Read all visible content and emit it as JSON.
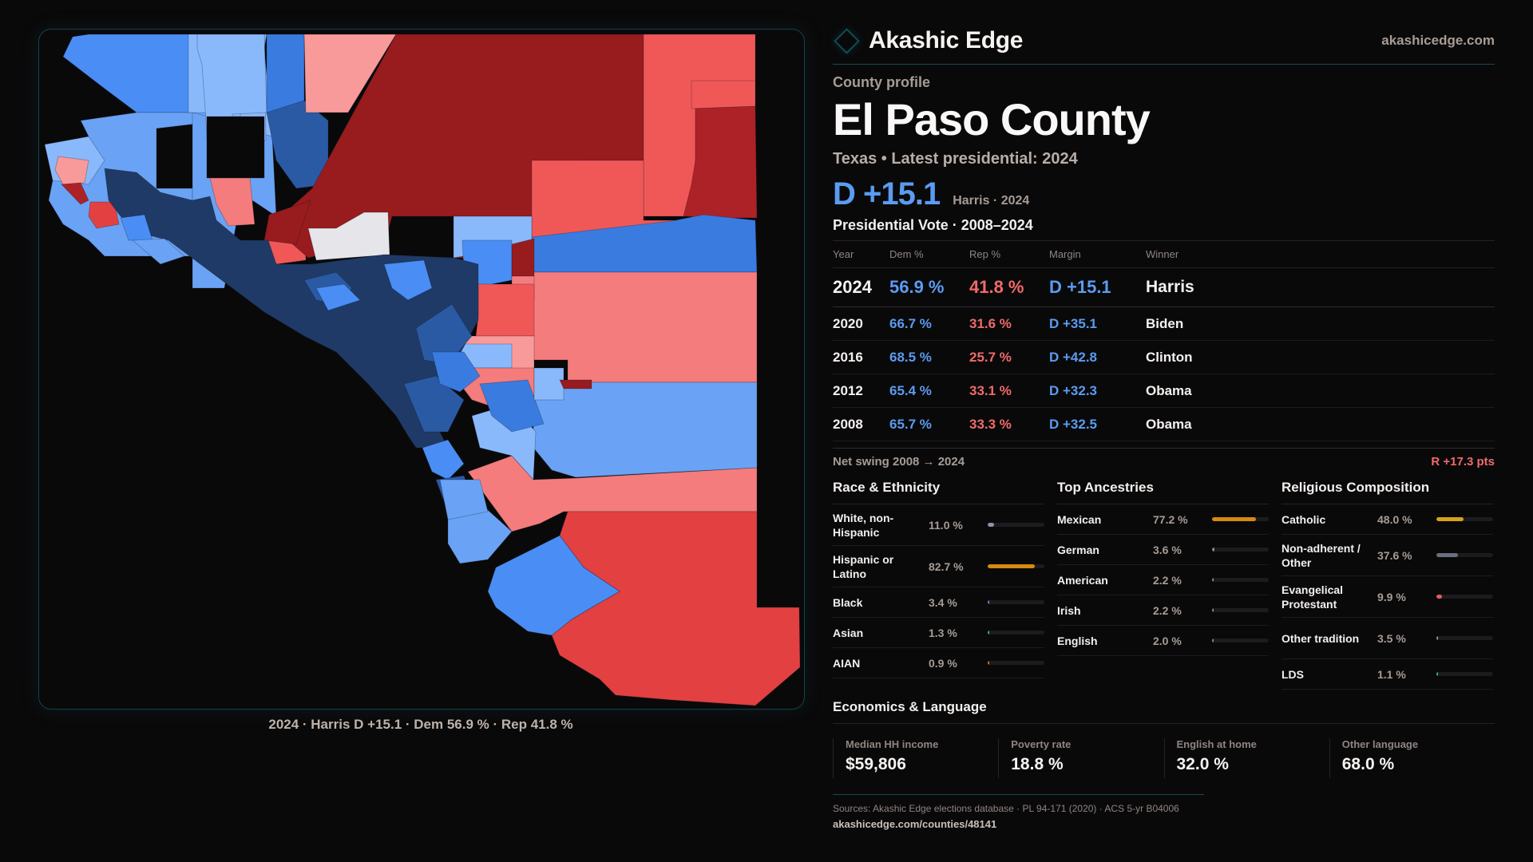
{
  "brand": {
    "name": "Akashic Edge",
    "url": "akashicedge.com",
    "logo_icon": "diamond-outline-icon"
  },
  "profile": {
    "eyebrow": "County profile",
    "title": "El Paso County",
    "subtitle": "Texas • Latest presidential: 2024",
    "headline_margin": "D +15.1",
    "headline_sub": "Harris · 2024"
  },
  "map": {
    "caption": "2024 · Harris D +15.1 · Dem 56.9 % · Rep 41.8 %",
    "colors": {
      "d_strong": "#1f3a66",
      "d_mid": "#2b5aa5",
      "d_blue": "#3a7be0",
      "d_bright": "#4a8ef5",
      "d_light": "#6aa3f5",
      "d_pale": "#8ab9fb",
      "r_dark": "#981b1e",
      "r_mid": "#ad2226",
      "r_red": "#e34042",
      "r_coral": "#f05858",
      "r_salmon": "#f47c7c",
      "r_pink": "#f99a9a",
      "tie": "#e6e6ea",
      "no_data": "#0a090a"
    }
  },
  "votes": {
    "title": "Presidential Vote · 2008–2024",
    "headers": [
      "Year",
      "Dem %",
      "Rep %",
      "Margin",
      "Winner"
    ],
    "rows": [
      {
        "year": "2024",
        "dem": "56.9 %",
        "rep": "41.8 %",
        "margin": "D +15.1",
        "winner": "Harris"
      },
      {
        "year": "2020",
        "dem": "66.7 %",
        "rep": "31.6 %",
        "margin": "D +35.1",
        "winner": "Biden"
      },
      {
        "year": "2016",
        "dem": "68.5 %",
        "rep": "25.7 %",
        "margin": "D +42.8",
        "winner": "Clinton"
      },
      {
        "year": "2012",
        "dem": "65.4 %",
        "rep": "33.1 %",
        "margin": "D +32.3",
        "winner": "Obama"
      },
      {
        "year": "2008",
        "dem": "65.7 %",
        "rep": "33.3 %",
        "margin": "D +32.5",
        "winner": "Obama"
      }
    ],
    "swing_label": "Net swing 2008 → 2024",
    "swing_value": "R +17.3 pts"
  },
  "race": {
    "title": "Race & Ethnicity",
    "items": [
      {
        "label": "White, non-Hispanic",
        "value": "11.0 %",
        "pct": 11.0,
        "color": "#8a96a8"
      },
      {
        "label": "Hispanic or Latino",
        "value": "82.7 %",
        "pct": 82.7,
        "color": "#d68a10"
      },
      {
        "label": "Black",
        "value": "3.4 %",
        "pct": 3.4,
        "color": "#8b6bd6"
      },
      {
        "label": "Asian",
        "value": "1.3 %",
        "pct": 1.3,
        "color": "#2fb38a"
      },
      {
        "label": "AIAN",
        "value": "0.9 %",
        "pct": 0.9,
        "color": "#d66a2a"
      }
    ]
  },
  "ancestry": {
    "title": "Top Ancestries",
    "items": [
      {
        "label": "Mexican",
        "value": "77.2 %",
        "pct": 77.2,
        "color": "#d68a10"
      },
      {
        "label": "German",
        "value": "3.6 %",
        "pct": 3.6,
        "color": "#7a879a"
      },
      {
        "label": "American",
        "value": "2.2 %",
        "pct": 2.2,
        "color": "#7a879a"
      },
      {
        "label": "Irish",
        "value": "2.2 %",
        "pct": 2.2,
        "color": "#7a879a"
      },
      {
        "label": "English",
        "value": "2.0 %",
        "pct": 2.0,
        "color": "#7a879a"
      }
    ]
  },
  "religion": {
    "title": "Religious Composition",
    "items": [
      {
        "label": "Catholic",
        "value": "48.0 %",
        "pct": 48.0,
        "color": "#d8a11a"
      },
      {
        "label": "Non-adherent / Other",
        "value": "37.6 %",
        "pct": 37.6,
        "color": "#6a6f7e"
      },
      {
        "label": "Evangelical Protestant",
        "value": "9.9 %",
        "pct": 9.9,
        "color": "#e05c5c"
      },
      {
        "label": "Other tradition",
        "value": "3.5 %",
        "pct": 3.5,
        "color": "#8a96a8"
      },
      {
        "label": "LDS",
        "value": "1.1 %",
        "pct": 1.1,
        "color": "#2fb3a8"
      }
    ]
  },
  "economics": {
    "title": "Economics & Language",
    "cards": [
      {
        "label": "Median HH income",
        "value": "$59,806"
      },
      {
        "label": "Poverty rate",
        "value": "18.8 %"
      },
      {
        "label": "English at home",
        "value": "32.0 %"
      },
      {
        "label": "Other language",
        "value": "68.0 %"
      }
    ]
  },
  "sources": {
    "text": "Sources: Akashic Edge elections database · PL 94-171 (2020) · ACS 5-yr B04006",
    "url": "akashicedge.com/counties/48141"
  }
}
